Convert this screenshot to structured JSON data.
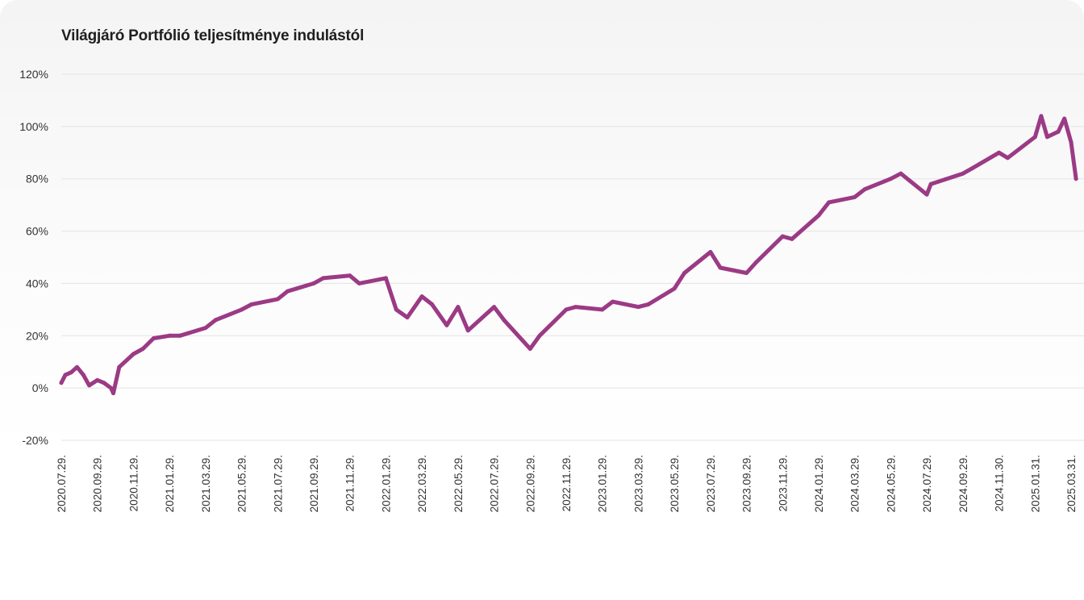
{
  "title": "Világjáró Portfólió teljesítménye indulástól",
  "chart_data": {
    "type": "line",
    "title": "Világjáró Portfólió teljesítménye indulástól",
    "xlabel": "",
    "ylabel": "",
    "ylim": [
      -20,
      120
    ],
    "y_ticks": [
      "-20%",
      "0%",
      "20%",
      "40%",
      "60%",
      "80%",
      "100%",
      "120%"
    ],
    "y_tick_values": [
      -20,
      0,
      20,
      40,
      60,
      80,
      100,
      120
    ],
    "x_ticks": [
      "2020.07.29.",
      "2020.09.29.",
      "2020.11.29.",
      "2021.01.29.",
      "2021.03.29.",
      "2021.05.29.",
      "2021.07.29.",
      "2021.09.29.",
      "2021.11.29.",
      "2022.01.29.",
      "2022.03.29.",
      "2022.05.29.",
      "2022.07.29.",
      "2022.09.29.",
      "2022.11.29.",
      "2023.01.29.",
      "2023.03.29.",
      "2023.05.29.",
      "2023.07.29.",
      "2023.09.29.",
      "2023.11.29.",
      "2024.01.29.",
      "2024.03.29.",
      "2024.05.29.",
      "2024.07.29.",
      "2024.09.29.",
      "2024.11.30.",
      "2025.01.31.",
      "2025.03.31."
    ],
    "grid": true,
    "legend": "none",
    "line_color": "#9b3a85",
    "series": [
      {
        "x": [
          "2020.07.29.",
          "2020.08.05.",
          "2020.08.15.",
          "2020.08.25.",
          "2020.09.05.",
          "2020.09.15.",
          "2020.09.29.",
          "2020.10.10.",
          "2020.10.22.",
          "2020.10.26.",
          "2020.11.05.",
          "2020.11.29.",
          "2020.12.15.",
          "2021.01.02.",
          "2021.01.29.",
          "2021.02.15.",
          "2021.03.29.",
          "2021.04.15.",
          "2021.05.29.",
          "2021.06.15.",
          "2021.07.29.",
          "2021.08.15.",
          "2021.09.29.",
          "2021.10.15.",
          "2021.11.29.",
          "2021.12.15.",
          "2022.01.29.",
          "2022.02.15.",
          "2022.03.05.",
          "2022.03.29.",
          "2022.04.15.",
          "2022.05.10.",
          "2022.05.29.",
          "2022.06.15.",
          "2022.07.29.",
          "2022.08.15.",
          "2022.09.29.",
          "2022.10.15.",
          "2022.11.29.",
          "2022.12.15.",
          "2023.01.29.",
          "2023.02.15.",
          "2023.03.29.",
          "2023.04.15.",
          "2023.05.29.",
          "2023.06.15.",
          "2023.07.29.",
          "2023.08.15.",
          "2023.09.29.",
          "2023.10.15.",
          "2023.11.29.",
          "2023.12.15.",
          "2024.01.29.",
          "2024.02.15.",
          "2024.03.29.",
          "2024.04.15.",
          "2024.05.29.",
          "2024.06.15.",
          "2024.07.29.",
          "2024.08.05.",
          "2024.09.29.",
          "2024.10.15.",
          "2024.11.30.",
          "2024.12.15.",
          "2025.01.31.",
          "2025.02.10.",
          "2025.02.20.",
          "2025.03.10.",
          "2025.03.20.",
          "2025.03.31.",
          "2025.04.08."
        ],
        "values": [
          2,
          5,
          6,
          8,
          5,
          1,
          3,
          2,
          0,
          -2,
          8,
          13,
          15,
          19,
          20,
          20,
          23,
          26,
          30,
          32,
          34,
          37,
          40,
          42,
          43,
          40,
          42,
          30,
          27,
          35,
          32,
          24,
          31,
          22,
          31,
          26,
          15,
          20,
          30,
          31,
          30,
          33,
          31,
          32,
          38,
          44,
          52,
          46,
          44,
          48,
          58,
          57,
          66,
          71,
          73,
          76,
          80,
          82,
          74,
          78,
          82,
          84,
          90,
          88,
          96,
          104,
          96,
          98,
          103,
          94,
          80
        ]
      }
    ]
  }
}
